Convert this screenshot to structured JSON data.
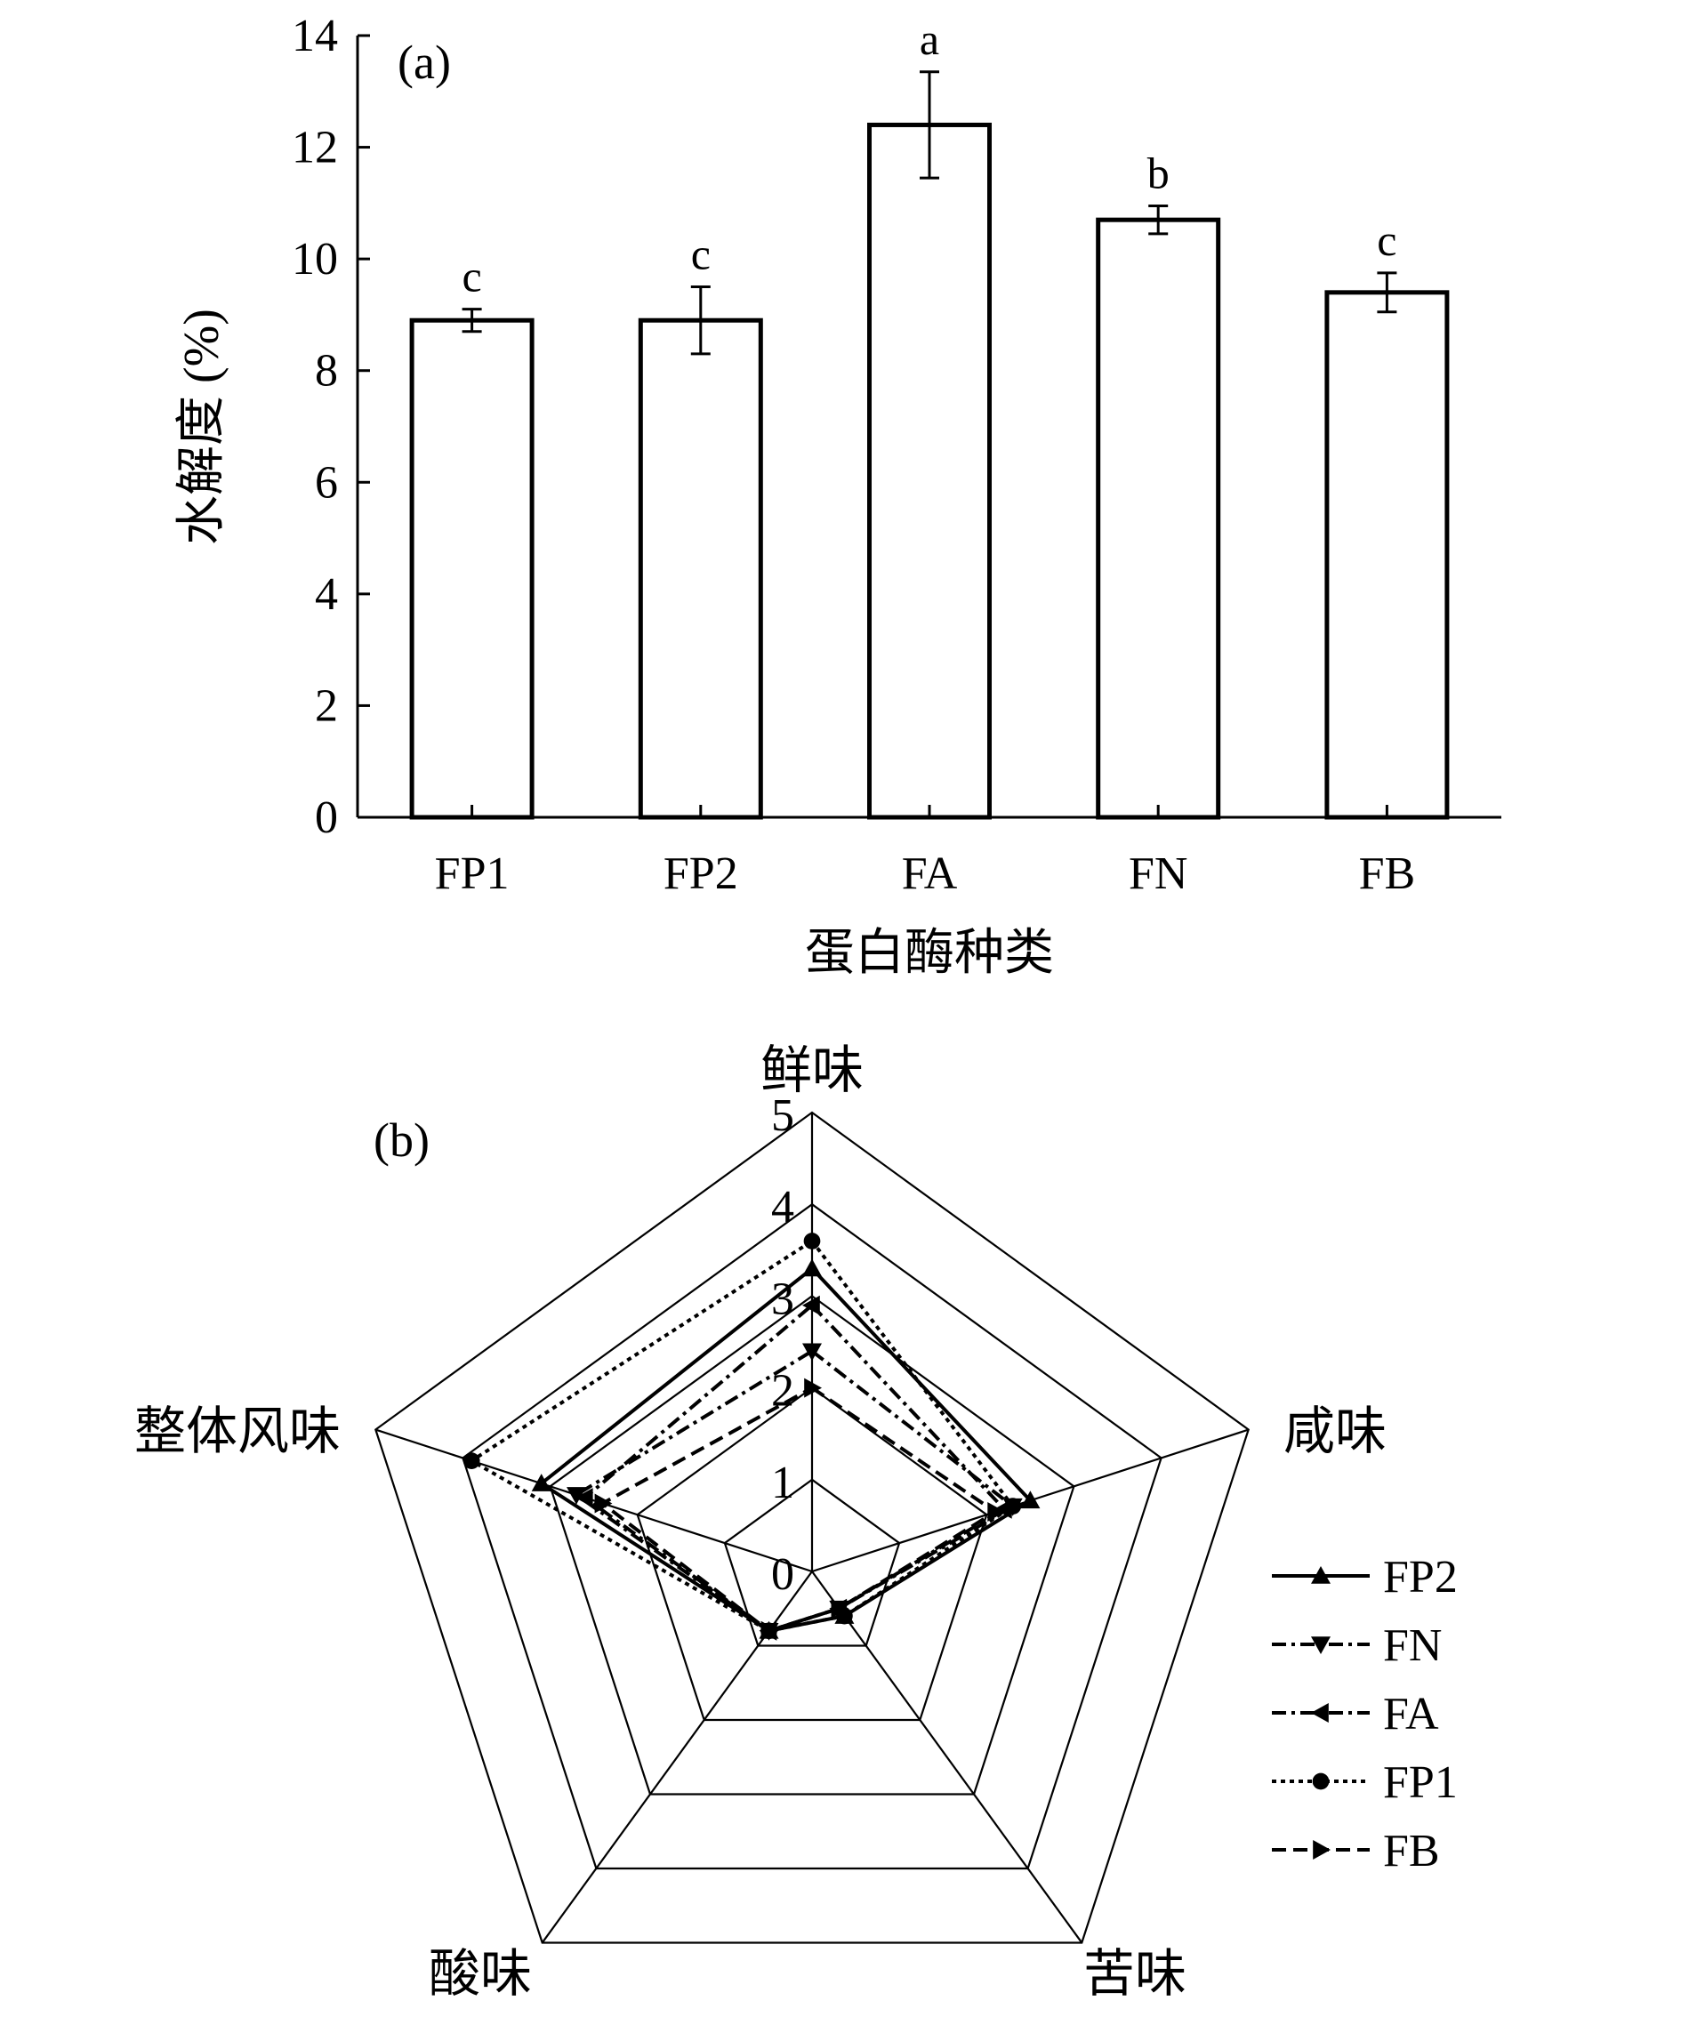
{
  "chart_data": [
    {
      "type": "bar",
      "panel_label": "(a)",
      "categories": [
        "FP1",
        "FP2",
        "FA",
        "FN",
        "FB"
      ],
      "values": [
        8.9,
        8.9,
        12.4,
        10.7,
        9.4
      ],
      "errors": [
        0.2,
        0.6,
        0.95,
        0.25,
        0.35
      ],
      "significance": [
        "c",
        "c",
        "a",
        "b",
        "c"
      ],
      "xlabel": "蛋白酶种类",
      "ylabel": "水解度 (%)",
      "ylim": [
        0,
        14
      ],
      "yticks": [
        0,
        2,
        4,
        6,
        8,
        10,
        12,
        14
      ],
      "grid": false
    },
    {
      "type": "radar",
      "panel_label": "(b)",
      "axes": [
        "鲜味",
        "咸味",
        "苦味",
        "酸味",
        "整体风味"
      ],
      "rlim": [
        0,
        5
      ],
      "rticks": [
        0,
        1,
        2,
        3,
        4,
        5
      ],
      "legend_position": "right",
      "series": [
        {
          "name": "FP2",
          "values": [
            3.3,
            2.5,
            0.6,
            0.8,
            3.1
          ],
          "dash": "solid",
          "marker": "triangle-up"
        },
        {
          "name": "FN",
          "values": [
            2.4,
            2.3,
            0.5,
            0.8,
            2.7
          ],
          "dash": "dashdot",
          "marker": "triangle-down"
        },
        {
          "name": "FA",
          "values": [
            2.9,
            2.2,
            0.5,
            0.8,
            2.6
          ],
          "dash": "dashdot",
          "marker": "triangle-left"
        },
        {
          "name": "FP1",
          "values": [
            3.6,
            2.3,
            0.6,
            0.8,
            3.9
          ],
          "dash": "dotted",
          "marker": "circle"
        },
        {
          "name": "FB",
          "values": [
            2.0,
            2.1,
            0.5,
            0.8,
            2.4
          ],
          "dash": "dashed",
          "marker": "triangle-right"
        }
      ]
    }
  ]
}
